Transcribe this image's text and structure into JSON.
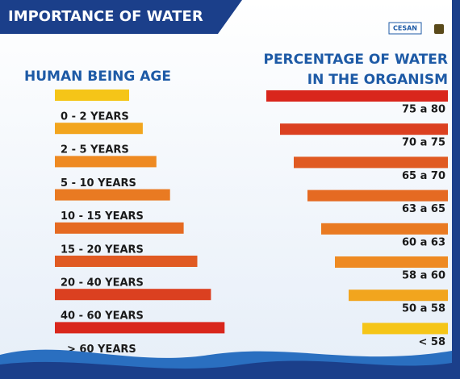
{
  "header": {
    "title": "IMPORTANCE OF WATER",
    "logo": "CESAN"
  },
  "left_heading": "HUMAN BEING AGE",
  "right_heading": [
    "PERCENTAGE OF WATER",
    "IN THE ORGANISM"
  ],
  "ages": [
    "0 - 2 YEARS",
    "2 - 5 YEARS",
    "5 - 10 YEARS",
    "10 - 15 YEARS",
    "15 - 20  YEARS",
    "20 - 40 YEARS",
    "40 - 60 YEARS",
    "> 60 YEARS"
  ],
  "percentages": [
    "75 a 80",
    "70 a 75",
    "65 a 70",
    "63 a 65",
    "60 a 63",
    "58 a 60",
    "50 a 58",
    "< 58"
  ]
}
